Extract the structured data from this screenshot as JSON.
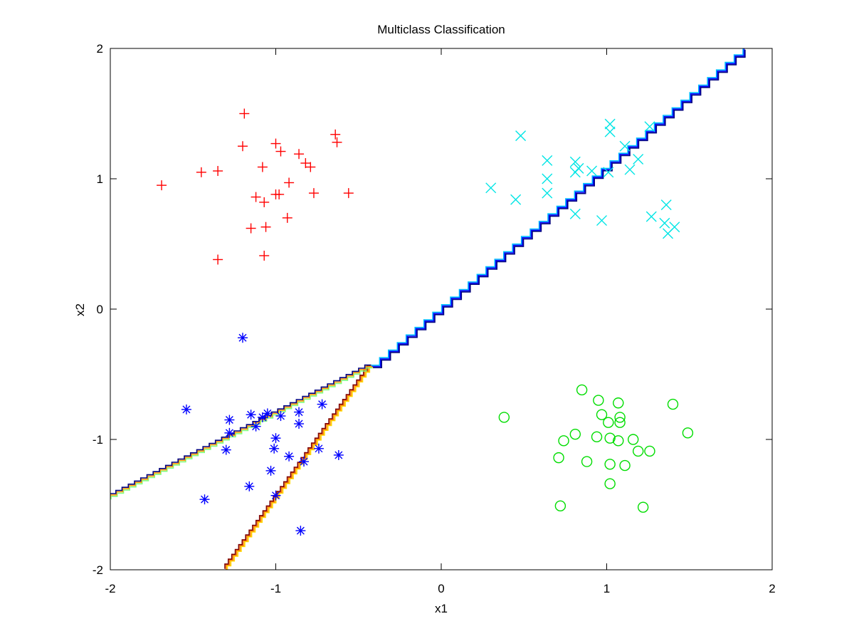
{
  "chart_data": {
    "type": "scatter",
    "title": "Multiclass Classification",
    "xlabel": "x1",
    "ylabel": "x2",
    "xlim": [
      -2,
      2
    ],
    "ylim": [
      -2,
      2
    ],
    "xticks": [
      -2,
      -1,
      0,
      1,
      2
    ],
    "yticks": [
      -2,
      -1,
      0,
      1,
      2
    ],
    "xtick_labels": [
      "-2",
      "-1",
      "0",
      "1",
      "2"
    ],
    "ytick_labels": [
      "-2",
      "-1",
      "0",
      "1",
      "2"
    ],
    "grid": false,
    "legend": "none",
    "series": [
      {
        "marker": "plus",
        "color": "#ff0000",
        "points": [
          [
            -1.19,
            1.5
          ],
          [
            -1.2,
            1.25
          ],
          [
            -1.0,
            1.27
          ],
          [
            -0.97,
            1.21
          ],
          [
            -0.86,
            1.19
          ],
          [
            -0.64,
            1.34
          ],
          [
            -0.63,
            1.28
          ],
          [
            -1.45,
            1.05
          ],
          [
            -1.35,
            1.06
          ],
          [
            -1.08,
            1.09
          ],
          [
            -0.82,
            1.12
          ],
          [
            -0.79,
            1.09
          ],
          [
            -1.69,
            0.95
          ],
          [
            -0.92,
            0.97
          ],
          [
            -1.12,
            0.86
          ],
          [
            -1.0,
            0.88
          ],
          [
            -0.98,
            0.88
          ],
          [
            -0.77,
            0.89
          ],
          [
            -0.56,
            0.89
          ],
          [
            -1.07,
            0.82
          ],
          [
            -0.93,
            0.7
          ],
          [
            -1.15,
            0.62
          ],
          [
            -1.06,
            0.63
          ],
          [
            -1.07,
            0.41
          ],
          [
            -1.35,
            0.38
          ]
        ]
      },
      {
        "marker": "x",
        "color": "#00e5e5",
        "points": [
          [
            1.02,
            1.42
          ],
          [
            1.02,
            1.36
          ],
          [
            1.26,
            1.4
          ],
          [
            0.48,
            1.33
          ],
          [
            1.11,
            1.25
          ],
          [
            1.19,
            1.15
          ],
          [
            0.64,
            1.14
          ],
          [
            0.81,
            1.13
          ],
          [
            0.83,
            1.08
          ],
          [
            0.81,
            1.05
          ],
          [
            0.91,
            1.06
          ],
          [
            1.01,
            1.05
          ],
          [
            1.14,
            1.07
          ],
          [
            0.64,
            1.0
          ],
          [
            0.3,
            0.93
          ],
          [
            0.64,
            0.89
          ],
          [
            0.45,
            0.84
          ],
          [
            0.81,
            0.73
          ],
          [
            0.97,
            0.68
          ],
          [
            1.36,
            0.8
          ],
          [
            1.27,
            0.71
          ],
          [
            1.35,
            0.66
          ],
          [
            1.41,
            0.63
          ],
          [
            1.37,
            0.58
          ]
        ]
      },
      {
        "marker": "star",
        "color": "#0000ff",
        "points": [
          [
            -1.2,
            -0.22
          ],
          [
            -1.54,
            -0.77
          ],
          [
            -1.28,
            -0.85
          ],
          [
            -1.15,
            -0.81
          ],
          [
            -1.08,
            -0.83
          ],
          [
            -1.05,
            -0.8
          ],
          [
            -0.97,
            -0.82
          ],
          [
            -0.86,
            -0.79
          ],
          [
            -0.72,
            -0.73
          ],
          [
            -1.12,
            -0.9
          ],
          [
            -1.28,
            -0.95
          ],
          [
            -0.86,
            -0.88
          ],
          [
            -1.0,
            -0.99
          ],
          [
            -1.3,
            -1.08
          ],
          [
            -1.01,
            -1.07
          ],
          [
            -0.92,
            -1.13
          ],
          [
            -0.74,
            -1.07
          ],
          [
            -0.62,
            -1.12
          ],
          [
            -0.83,
            -1.17
          ],
          [
            -1.03,
            -1.24
          ],
          [
            -1.16,
            -1.36
          ],
          [
            -1.0,
            -1.43
          ],
          [
            -1.43,
            -1.46
          ],
          [
            -0.85,
            -1.7
          ]
        ]
      },
      {
        "marker": "circle",
        "color": "#00dd00",
        "points": [
          [
            0.85,
            -0.62
          ],
          [
            0.95,
            -0.7
          ],
          [
            1.07,
            -0.72
          ],
          [
            1.4,
            -0.73
          ],
          [
            0.38,
            -0.83
          ],
          [
            0.97,
            -0.81
          ],
          [
            1.08,
            -0.83
          ],
          [
            1.01,
            -0.87
          ],
          [
            1.08,
            -0.87
          ],
          [
            1.49,
            -0.95
          ],
          [
            0.81,
            -0.96
          ],
          [
            0.94,
            -0.98
          ],
          [
            1.02,
            -0.99
          ],
          [
            1.07,
            -1.01
          ],
          [
            1.16,
            -1.0
          ],
          [
            0.74,
            -1.01
          ],
          [
            1.19,
            -1.09
          ],
          [
            1.26,
            -1.09
          ],
          [
            0.71,
            -1.14
          ],
          [
            0.88,
            -1.17
          ],
          [
            1.02,
            -1.19
          ],
          [
            1.11,
            -1.2
          ],
          [
            1.02,
            -1.34
          ],
          [
            0.72,
            -1.51
          ],
          [
            1.22,
            -1.52
          ]
        ]
      }
    ],
    "boundaries": [
      {
        "colors": [
          "#00bfff",
          "#0000ff",
          "#00007f"
        ],
        "points": [
          [
            -0.42,
            -0.44
          ],
          [
            1.83,
            2.0
          ]
        ]
      },
      {
        "colors": [
          "#ffd700",
          "#ff8000",
          "#7f0000"
        ],
        "points": [
          [
            -0.42,
            -0.44
          ],
          [
            -1.3,
            -2.0
          ]
        ]
      },
      {
        "colors": [
          "#7fff7f",
          "#ff9900",
          "#00007f"
        ],
        "points": [
          [
            -0.42,
            -0.44
          ],
          [
            -2.0,
            -1.45
          ]
        ]
      }
    ]
  }
}
